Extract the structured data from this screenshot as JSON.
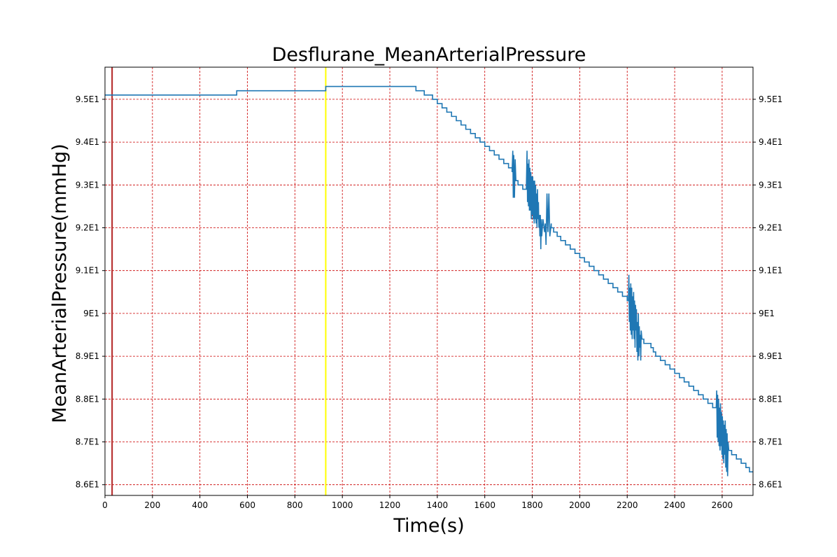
{
  "chart_data": {
    "type": "line",
    "title": "Desflurane_MeanArterialPressure",
    "xlabel": "Time(s)",
    "ylabel": "MeanArterialPressure(mmHg)",
    "xlim": [
      0,
      2730
    ],
    "ylim": [
      85.75,
      95.75
    ],
    "grid": true,
    "grid_color": "#cc0000",
    "line_color": "#1f77b4",
    "x_ticks": [
      0,
      200,
      400,
      600,
      800,
      1000,
      1200,
      1400,
      1600,
      1800,
      2000,
      2200,
      2400,
      2600
    ],
    "x_tick_labels": [
      "0",
      "200",
      "400",
      "600",
      "800",
      "1000",
      "1200",
      "1400",
      "1600",
      "1800",
      "2000",
      "2200",
      "2400",
      "2600"
    ],
    "y_ticks": [
      86,
      87,
      88,
      89,
      90,
      91,
      92,
      93,
      94,
      95
    ],
    "y_tick_labels": [
      "8.6E1",
      "8.7E1",
      "8.8E1",
      "8.9E1",
      "9E1",
      "9.1E1",
      "9.2E1",
      "9.3E1",
      "9.4E1",
      "9.5E1"
    ],
    "vertical_markers": [
      {
        "x": 30,
        "color": "#b22222"
      },
      {
        "x": 930,
        "color": "#ffff00"
      }
    ],
    "series": [
      {
        "points": [
          [
            0,
            95.1
          ],
          [
            555,
            95.1
          ],
          [
            555,
            95.2
          ],
          [
            930,
            95.2
          ],
          [
            930,
            95.3
          ],
          [
            1310,
            95.3
          ],
          [
            1310,
            95.2
          ],
          [
            1345,
            95.2
          ],
          [
            1345,
            95.1
          ],
          [
            1380,
            95.1
          ],
          [
            1380,
            95.0
          ],
          [
            1400,
            95.0
          ],
          [
            1400,
            94.9
          ],
          [
            1420,
            94.9
          ],
          [
            1420,
            94.8
          ],
          [
            1440,
            94.8
          ],
          [
            1440,
            94.7
          ],
          [
            1460,
            94.7
          ],
          [
            1460,
            94.6
          ],
          [
            1480,
            94.6
          ],
          [
            1480,
            94.5
          ],
          [
            1500,
            94.5
          ],
          [
            1500,
            94.4
          ],
          [
            1520,
            94.4
          ],
          [
            1520,
            94.3
          ],
          [
            1540,
            94.3
          ],
          [
            1540,
            94.2
          ],
          [
            1560,
            94.2
          ],
          [
            1560,
            94.1
          ],
          [
            1580,
            94.1
          ],
          [
            1580,
            94.0
          ],
          [
            1600,
            94.0
          ],
          [
            1600,
            93.9
          ],
          [
            1620,
            93.9
          ],
          [
            1620,
            93.8
          ],
          [
            1640,
            93.8
          ],
          [
            1640,
            93.7
          ],
          [
            1660,
            93.7
          ],
          [
            1660,
            93.6
          ],
          [
            1680,
            93.6
          ],
          [
            1680,
            93.5
          ],
          [
            1700,
            93.5
          ],
          [
            1700,
            93.4
          ],
          [
            1715,
            93.4
          ],
          [
            1715,
            93.3
          ],
          [
            1718,
            93.8
          ],
          [
            1720,
            92.7
          ],
          [
            1722,
            93.7
          ],
          [
            1725,
            92.7
          ],
          [
            1728,
            93.6
          ],
          [
            1731,
            93.1
          ],
          [
            1740,
            93.1
          ],
          [
            1740,
            93.0
          ],
          [
            1760,
            93.0
          ],
          [
            1760,
            92.9
          ],
          [
            1775,
            92.9
          ],
          [
            1778,
            93.8
          ],
          [
            1780,
            92.6
          ],
          [
            1782,
            93.5
          ],
          [
            1784,
            92.5
          ],
          [
            1786,
            93.6
          ],
          [
            1788,
            92.4
          ],
          [
            1790,
            93.4
          ],
          [
            1792,
            92.4
          ],
          [
            1794,
            93.3
          ],
          [
            1796,
            92.2
          ],
          [
            1798,
            93.2
          ],
          [
            1800,
            92.3
          ],
          [
            1802,
            93.2
          ],
          [
            1804,
            92.2
          ],
          [
            1806,
            93.1
          ],
          [
            1808,
            92.1
          ],
          [
            1810,
            93.1
          ],
          [
            1812,
            92.2
          ],
          [
            1814,
            93.0
          ],
          [
            1816,
            92.1
          ],
          [
            1818,
            92.8
          ],
          [
            1820,
            92.0
          ],
          [
            1822,
            92.9
          ],
          [
            1824,
            92.2
          ],
          [
            1826,
            92.6
          ],
          [
            1828,
            92.0
          ],
          [
            1830,
            92.3
          ],
          [
            1832,
            91.8
          ],
          [
            1834,
            92.3
          ],
          [
            1836,
            91.5
          ],
          [
            1838,
            92.2
          ],
          [
            1840,
            91.8
          ],
          [
            1845,
            92.2
          ],
          [
            1852,
            91.9
          ],
          [
            1855,
            92.1
          ],
          [
            1858,
            91.6
          ],
          [
            1862,
            92.8
          ],
          [
            1866,
            91.9
          ],
          [
            1870,
            92.8
          ],
          [
            1874,
            91.8
          ],
          [
            1880,
            92.1
          ],
          [
            1880,
            92.0
          ],
          [
            1890,
            92.0
          ],
          [
            1890,
            91.9
          ],
          [
            1905,
            91.9
          ],
          [
            1905,
            91.8
          ],
          [
            1920,
            91.8
          ],
          [
            1920,
            91.7
          ],
          [
            1940,
            91.7
          ],
          [
            1940,
            91.6
          ],
          [
            1960,
            91.6
          ],
          [
            1960,
            91.5
          ],
          [
            1980,
            91.5
          ],
          [
            1980,
            91.4
          ],
          [
            2000,
            91.4
          ],
          [
            2000,
            91.3
          ],
          [
            2020,
            91.3
          ],
          [
            2020,
            91.2
          ],
          [
            2040,
            91.2
          ],
          [
            2040,
            91.1
          ],
          [
            2060,
            91.1
          ],
          [
            2060,
            91.0
          ],
          [
            2080,
            91.0
          ],
          [
            2080,
            90.9
          ],
          [
            2100,
            90.9
          ],
          [
            2100,
            90.8
          ],
          [
            2120,
            90.8
          ],
          [
            2120,
            90.7
          ],
          [
            2140,
            90.7
          ],
          [
            2140,
            90.6
          ],
          [
            2160,
            90.6
          ],
          [
            2160,
            90.5
          ],
          [
            2180,
            90.5
          ],
          [
            2180,
            90.4
          ],
          [
            2200,
            90.4
          ],
          [
            2200,
            90.3
          ],
          [
            2205,
            90.3
          ],
          [
            2207,
            90.9
          ],
          [
            2209,
            89.8
          ],
          [
            2211,
            90.6
          ],
          [
            2213,
            89.6
          ],
          [
            2215,
            90.7
          ],
          [
            2217,
            89.5
          ],
          [
            2219,
            90.6
          ],
          [
            2221,
            89.4
          ],
          [
            2223,
            90.4
          ],
          [
            2225,
            89.6
          ],
          [
            2227,
            90.5
          ],
          [
            2229,
            89.4
          ],
          [
            2231,
            90.3
          ],
          [
            2233,
            89.2
          ],
          [
            2235,
            90.2
          ],
          [
            2237,
            89.6
          ],
          [
            2239,
            90.1
          ],
          [
            2241,
            89.1
          ],
          [
            2243,
            89.8
          ],
          [
            2245,
            88.9
          ],
          [
            2247,
            90.0
          ],
          [
            2249,
            89.0
          ],
          [
            2251,
            89.7
          ],
          [
            2253,
            89.2
          ],
          [
            2255,
            89.5
          ],
          [
            2257,
            88.9
          ],
          [
            2259,
            89.6
          ],
          [
            2262,
            89.4
          ],
          [
            2270,
            89.4
          ],
          [
            2270,
            89.3
          ],
          [
            2300,
            89.3
          ],
          [
            2300,
            89.2
          ],
          [
            2310,
            89.2
          ],
          [
            2310,
            89.1
          ],
          [
            2320,
            89.1
          ],
          [
            2320,
            89.0
          ],
          [
            2340,
            89.0
          ],
          [
            2340,
            88.9
          ],
          [
            2360,
            88.9
          ],
          [
            2360,
            88.8
          ],
          [
            2380,
            88.8
          ],
          [
            2380,
            88.7
          ],
          [
            2400,
            88.7
          ],
          [
            2400,
            88.6
          ],
          [
            2420,
            88.6
          ],
          [
            2420,
            88.5
          ],
          [
            2440,
            88.5
          ],
          [
            2440,
            88.4
          ],
          [
            2460,
            88.4
          ],
          [
            2460,
            88.3
          ],
          [
            2480,
            88.3
          ],
          [
            2480,
            88.2
          ],
          [
            2500,
            88.2
          ],
          [
            2500,
            88.1
          ],
          [
            2520,
            88.1
          ],
          [
            2520,
            88.0
          ],
          [
            2540,
            88.0
          ],
          [
            2540,
            87.9
          ],
          [
            2560,
            87.9
          ],
          [
            2560,
            87.8
          ],
          [
            2575,
            87.8
          ],
          [
            2577,
            88.2
          ],
          [
            2579,
            87.1
          ],
          [
            2581,
            88.1
          ],
          [
            2583,
            87.0
          ],
          [
            2585,
            88.0
          ],
          [
            2587,
            86.9
          ],
          [
            2589,
            87.8
          ],
          [
            2591,
            86.8
          ],
          [
            2593,
            87.9
          ],
          [
            2595,
            86.9
          ],
          [
            2597,
            87.7
          ],
          [
            2599,
            86.7
          ],
          [
            2601,
            87.6
          ],
          [
            2603,
            86.6
          ],
          [
            2605,
            87.5
          ],
          [
            2607,
            86.5
          ],
          [
            2609,
            87.4
          ],
          [
            2611,
            86.7
          ],
          [
            2613,
            87.5
          ],
          [
            2615,
            86.4
          ],
          [
            2617,
            87.3
          ],
          [
            2619,
            86.3
          ],
          [
            2621,
            87.2
          ],
          [
            2623,
            86.2
          ],
          [
            2625,
            87.0
          ],
          [
            2628,
            86.8
          ],
          [
            2640,
            86.8
          ],
          [
            2640,
            86.7
          ],
          [
            2660,
            86.7
          ],
          [
            2660,
            86.6
          ],
          [
            2680,
            86.6
          ],
          [
            2680,
            86.5
          ],
          [
            2700,
            86.5
          ],
          [
            2700,
            86.4
          ],
          [
            2715,
            86.4
          ],
          [
            2715,
            86.3
          ],
          [
            2730,
            86.3
          ]
        ]
      }
    ]
  }
}
